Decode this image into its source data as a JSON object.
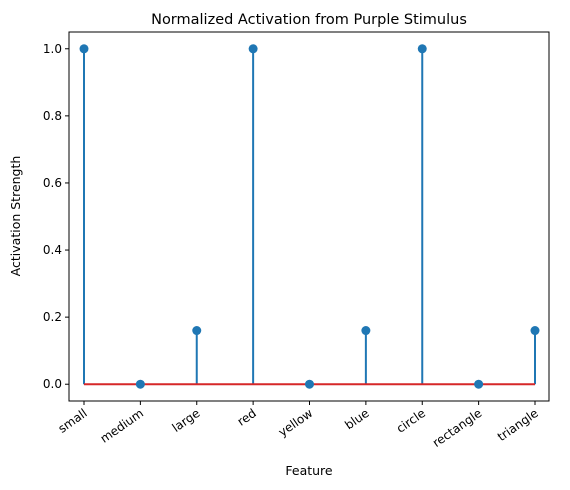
{
  "chart_data": {
    "type": "stem",
    "title": "Normalized Activation from Purple Stimulus",
    "xlabel": "Feature",
    "ylabel": "Activation Strength",
    "categories": [
      "small",
      "medium",
      "large",
      "red",
      "yellow",
      "blue",
      "circle",
      "rectangle",
      "triangle"
    ],
    "values": [
      1.0,
      0.0,
      0.16,
      1.0,
      0.0,
      0.16,
      1.0,
      0.0,
      0.16
    ],
    "ylim": [
      -0.05,
      1.05
    ],
    "yticks": [
      "0.0",
      "0.2",
      "0.4",
      "0.6",
      "0.8",
      "1.0"
    ],
    "grid": false,
    "colors": {
      "stem": "#1f77b4",
      "marker": "#1f77b4",
      "baseline": "#d62728"
    }
  }
}
